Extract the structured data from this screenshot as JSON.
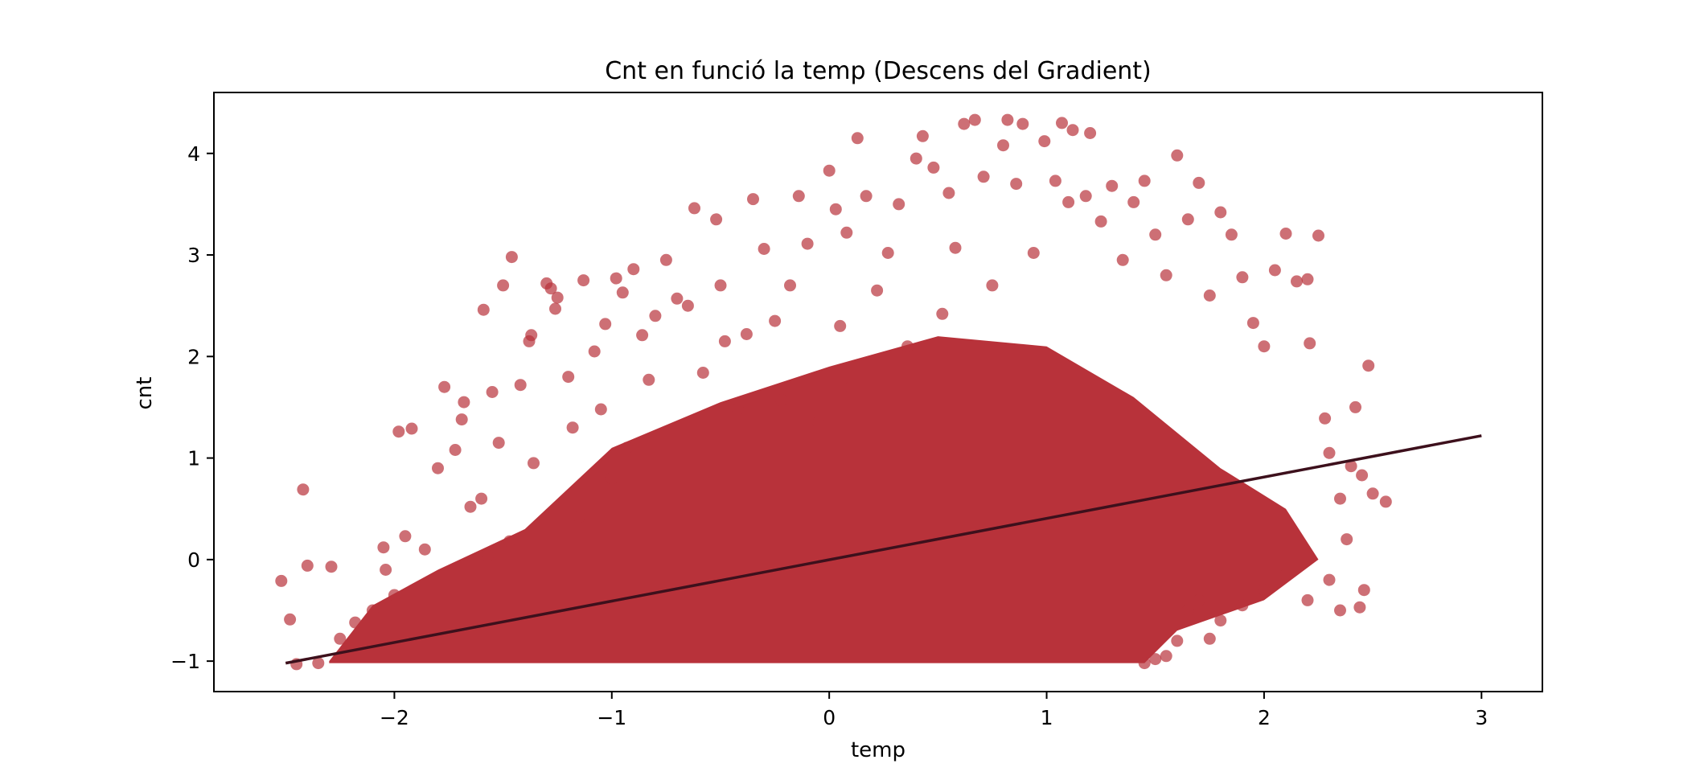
{
  "chart_data": {
    "type": "scatter",
    "title": "Cnt en funció la temp (Descens del Gradient)",
    "xlabel": "temp",
    "ylabel": "cnt",
    "xlim": [
      -2.83,
      3.28
    ],
    "ylim": [
      -1.3,
      4.6
    ],
    "xticks": [
      -2,
      -1,
      0,
      1,
      2,
      3
    ],
    "xtick_labels": [
      "−2",
      "−1",
      "0",
      "1",
      "2",
      "3"
    ],
    "yticks": [
      -1,
      0,
      1,
      2,
      3,
      4
    ],
    "ytick_labels": [
      "−1",
      "0",
      "1",
      "2",
      "3",
      "4"
    ],
    "grid": false,
    "series": [
      {
        "kind": "scatter",
        "color": "#b8323a",
        "opacity": 0.7,
        "points": [
          [
            -2.52,
            -0.21
          ],
          [
            -2.48,
            -0.59
          ],
          [
            -2.45,
            -1.03
          ],
          [
            -2.4,
            -0.06
          ],
          [
            -2.35,
            -1.02
          ],
          [
            -2.29,
            -0.07
          ],
          [
            -2.42,
            0.69
          ],
          [
            -2.25,
            -0.78
          ],
          [
            -2.2,
            -0.95
          ],
          [
            -2.18,
            -0.62
          ],
          [
            -2.1,
            -0.5
          ],
          [
            -2.05,
            0.12
          ],
          [
            -2.04,
            -0.1
          ],
          [
            -2.0,
            -0.35
          ],
          [
            -1.95,
            0.23
          ],
          [
            -1.92,
            1.29
          ],
          [
            -1.98,
            1.26
          ],
          [
            -1.86,
            0.1
          ],
          [
            -1.8,
            0.9
          ],
          [
            -1.77,
            1.7
          ],
          [
            -1.72,
            1.08
          ],
          [
            -1.69,
            1.38
          ],
          [
            -1.68,
            1.55
          ],
          [
            -1.65,
            0.52
          ],
          [
            -1.6,
            0.6
          ],
          [
            -1.57,
            0.04
          ],
          [
            -1.59,
            2.46
          ],
          [
            -1.55,
            1.65
          ],
          [
            -1.52,
            1.15
          ],
          [
            -1.5,
            2.7
          ],
          [
            -1.47,
            0.18
          ],
          [
            -1.46,
            2.98
          ],
          [
            -1.42,
            1.72
          ],
          [
            -1.38,
            2.15
          ],
          [
            -1.37,
            2.21
          ],
          [
            -1.36,
            0.95
          ],
          [
            -1.3,
            2.72
          ],
          [
            -1.28,
            2.67
          ],
          [
            -1.26,
            2.47
          ],
          [
            -1.25,
            2.58
          ],
          [
            -1.2,
            1.8
          ],
          [
            -1.18,
            1.3
          ],
          [
            -1.15,
            0.42
          ],
          [
            -1.13,
            2.75
          ],
          [
            -1.08,
            2.05
          ],
          [
            -1.05,
            1.48
          ],
          [
            -1.03,
            2.32
          ],
          [
            -1.0,
            0.8
          ],
          [
            -0.98,
            2.77
          ],
          [
            -0.95,
            2.63
          ],
          [
            -0.93,
            1.1
          ],
          [
            -0.9,
            2.86
          ],
          [
            -0.86,
            2.21
          ],
          [
            -0.83,
            1.77
          ],
          [
            -0.8,
            2.4
          ],
          [
            -0.75,
            2.95
          ],
          [
            -0.7,
            2.57
          ],
          [
            -0.65,
            2.5
          ],
          [
            -0.62,
            3.46
          ],
          [
            -0.58,
            1.84
          ],
          [
            -0.52,
            3.35
          ],
          [
            -0.5,
            2.7
          ],
          [
            -0.48,
            2.15
          ],
          [
            -0.42,
            1.48
          ],
          [
            -0.38,
            2.22
          ],
          [
            -0.35,
            3.55
          ],
          [
            -0.3,
            3.06
          ],
          [
            -0.25,
            2.35
          ],
          [
            -0.22,
            1.57
          ],
          [
            -0.18,
            2.7
          ],
          [
            -0.14,
            3.58
          ],
          [
            -0.1,
            3.11
          ],
          [
            -0.05,
            1.35
          ],
          [
            0.0,
            3.83
          ],
          [
            0.03,
            3.45
          ],
          [
            0.05,
            2.3
          ],
          [
            0.08,
            3.22
          ],
          [
            0.1,
            1.7
          ],
          [
            0.13,
            4.15
          ],
          [
            0.17,
            3.58
          ],
          [
            0.22,
            2.65
          ],
          [
            0.27,
            3.02
          ],
          [
            0.32,
            3.5
          ],
          [
            0.36,
            2.1
          ],
          [
            0.4,
            3.95
          ],
          [
            0.43,
            4.17
          ],
          [
            0.48,
            3.86
          ],
          [
            0.52,
            2.42
          ],
          [
            0.55,
            3.61
          ],
          [
            0.58,
            3.07
          ],
          [
            0.62,
            4.29
          ],
          [
            0.67,
            4.33
          ],
          [
            0.71,
            3.77
          ],
          [
            0.75,
            2.7
          ],
          [
            0.8,
            4.08
          ],
          [
            0.82,
            4.33
          ],
          [
            0.86,
            3.7
          ],
          [
            0.89,
            4.29
          ],
          [
            0.94,
            3.02
          ],
          [
            0.99,
            4.12
          ],
          [
            1.04,
            3.73
          ],
          [
            1.07,
            4.3
          ],
          [
            1.1,
            3.52
          ],
          [
            1.12,
            4.23
          ],
          [
            1.18,
            3.58
          ],
          [
            1.2,
            4.2
          ],
          [
            1.25,
            3.33
          ],
          [
            1.3,
            3.68
          ],
          [
            1.35,
            2.95
          ],
          [
            1.4,
            3.52
          ],
          [
            1.45,
            3.73
          ],
          [
            1.5,
            3.2
          ],
          [
            1.55,
            2.8
          ],
          [
            1.6,
            3.98
          ],
          [
            1.65,
            3.35
          ],
          [
            1.7,
            3.71
          ],
          [
            1.75,
            2.6
          ],
          [
            1.8,
            3.42
          ],
          [
            1.85,
            3.2
          ],
          [
            1.9,
            2.78
          ],
          [
            1.95,
            2.33
          ],
          [
            2.0,
            2.1
          ],
          [
            2.05,
            2.85
          ],
          [
            2.1,
            3.21
          ],
          [
            2.15,
            2.74
          ],
          [
            2.2,
            2.76
          ],
          [
            2.25,
            3.19
          ],
          [
            2.21,
            2.13
          ],
          [
            2.28,
            1.39
          ],
          [
            2.3,
            1.05
          ],
          [
            2.35,
            0.6
          ],
          [
            2.38,
            0.2
          ],
          [
            2.4,
            0.92
          ],
          [
            2.42,
            1.5
          ],
          [
            2.45,
            0.83
          ],
          [
            2.5,
            0.65
          ],
          [
            2.48,
            1.91
          ],
          [
            2.56,
            0.57
          ],
          [
            2.46,
            -0.3
          ],
          [
            2.44,
            -0.47
          ],
          [
            2.35,
            -0.5
          ],
          [
            2.3,
            -0.2
          ],
          [
            2.2,
            -0.4
          ],
          [
            2.1,
            -0.15
          ],
          [
            2.0,
            -0.3
          ],
          [
            1.9,
            -0.45
          ],
          [
            1.8,
            -0.6
          ],
          [
            1.75,
            -0.78
          ],
          [
            1.7,
            -0.4
          ],
          [
            1.65,
            -0.5
          ],
          [
            1.6,
            -0.8
          ],
          [
            1.55,
            -0.95
          ],
          [
            1.5,
            -0.98
          ],
          [
            1.45,
            -1.02
          ]
        ]
      },
      {
        "kind": "line",
        "color": "#3d101c",
        "points": [
          [
            -2.5,
            -1.02
          ],
          [
            3.0,
            1.22
          ]
        ]
      }
    ]
  }
}
